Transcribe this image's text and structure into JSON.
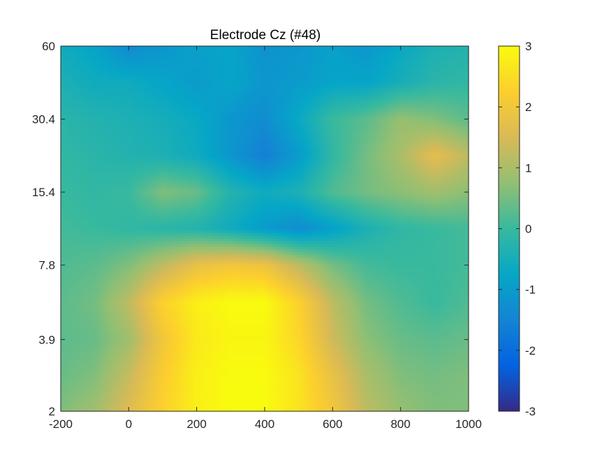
{
  "chart_data": {
    "type": "heatmap",
    "title": "Electrode Cz (#48)",
    "xlabel": "",
    "ylabel": "",
    "colormap": "parula",
    "xlim": [
      -200,
      1000
    ],
    "x_ticks": [
      "-200",
      "0",
      "200",
      "400",
      "600",
      "800",
      "1000"
    ],
    "y_scale": "log",
    "ylim": [
      2,
      60
    ],
    "y_ticks": [
      "2",
      "3.9",
      "7.8",
      "15.4",
      "30.4",
      "60"
    ],
    "y_tick_values": [
      2,
      3.9,
      7.8,
      15.4,
      30.4,
      60
    ],
    "clim": [
      -3,
      3
    ],
    "colorbar_ticks": [
      "3",
      "2",
      "1",
      "0",
      "-1",
      "-2",
      "-3"
    ],
    "colorbar_tick_values": [
      3,
      2,
      1,
      0,
      -1,
      -2,
      -3
    ],
    "x": [
      -200,
      -100,
      0,
      100,
      200,
      300,
      400,
      500,
      600,
      700,
      800,
      900,
      1000
    ],
    "y": [
      2,
      2.8,
      3.9,
      5.5,
      7.8,
      11,
      15.4,
      21.6,
      30.4,
      43,
      60
    ],
    "z": [
      [
        0.6,
        0.9,
        1.6,
        2.3,
        2.8,
        3.0,
        3.0,
        2.6,
        2.0,
        1.2,
        0.8,
        0.6,
        0.6
      ],
      [
        0.4,
        0.6,
        1.3,
        2.2,
        2.8,
        3.0,
        3.0,
        2.6,
        1.8,
        1.0,
        0.6,
        0.5,
        0.6
      ],
      [
        0.3,
        0.4,
        0.9,
        2.0,
        2.7,
        2.9,
        2.9,
        2.4,
        1.4,
        0.7,
        0.4,
        0.3,
        0.4
      ],
      [
        0.3,
        0.5,
        1.2,
        2.3,
        2.8,
        3.0,
        3.0,
        2.3,
        1.2,
        0.5,
        0.2,
        0.0,
        0.2
      ],
      [
        0.2,
        0.3,
        0.6,
        1.2,
        1.8,
        2.0,
        1.9,
        1.2,
        0.5,
        0.1,
        0.0,
        0.0,
        0.1
      ],
      [
        0.1,
        0.0,
        -0.1,
        -0.2,
        -0.3,
        -0.6,
        -1.0,
        -1.3,
        -0.9,
        -0.4,
        -0.1,
        0.0,
        0.1
      ],
      [
        0.0,
        -0.1,
        0.0,
        0.6,
        0.4,
        -0.3,
        -0.6,
        -0.4,
        0.2,
        0.5,
        0.7,
        0.9,
        0.7
      ],
      [
        -0.1,
        -0.2,
        -0.3,
        -0.4,
        -0.6,
        -1.1,
        -1.6,
        -1.0,
        -0.1,
        0.5,
        1.0,
        1.7,
        1.2
      ],
      [
        -0.2,
        -0.3,
        -0.4,
        -0.5,
        -0.7,
        -1.1,
        -1.3,
        -0.7,
        0.0,
        0.3,
        0.8,
        0.6,
        0.3
      ],
      [
        -0.4,
        -0.6,
        -0.6,
        -0.8,
        -1.0,
        -0.8,
        -1.1,
        -1.0,
        -0.8,
        -0.8,
        -0.5,
        -0.2,
        -0.1
      ],
      [
        -0.6,
        -0.8,
        -1.4,
        -1.1,
        -0.9,
        -0.8,
        -1.2,
        -1.1,
        -0.9,
        -1.1,
        -0.7,
        -0.4,
        -0.3
      ]
    ]
  }
}
